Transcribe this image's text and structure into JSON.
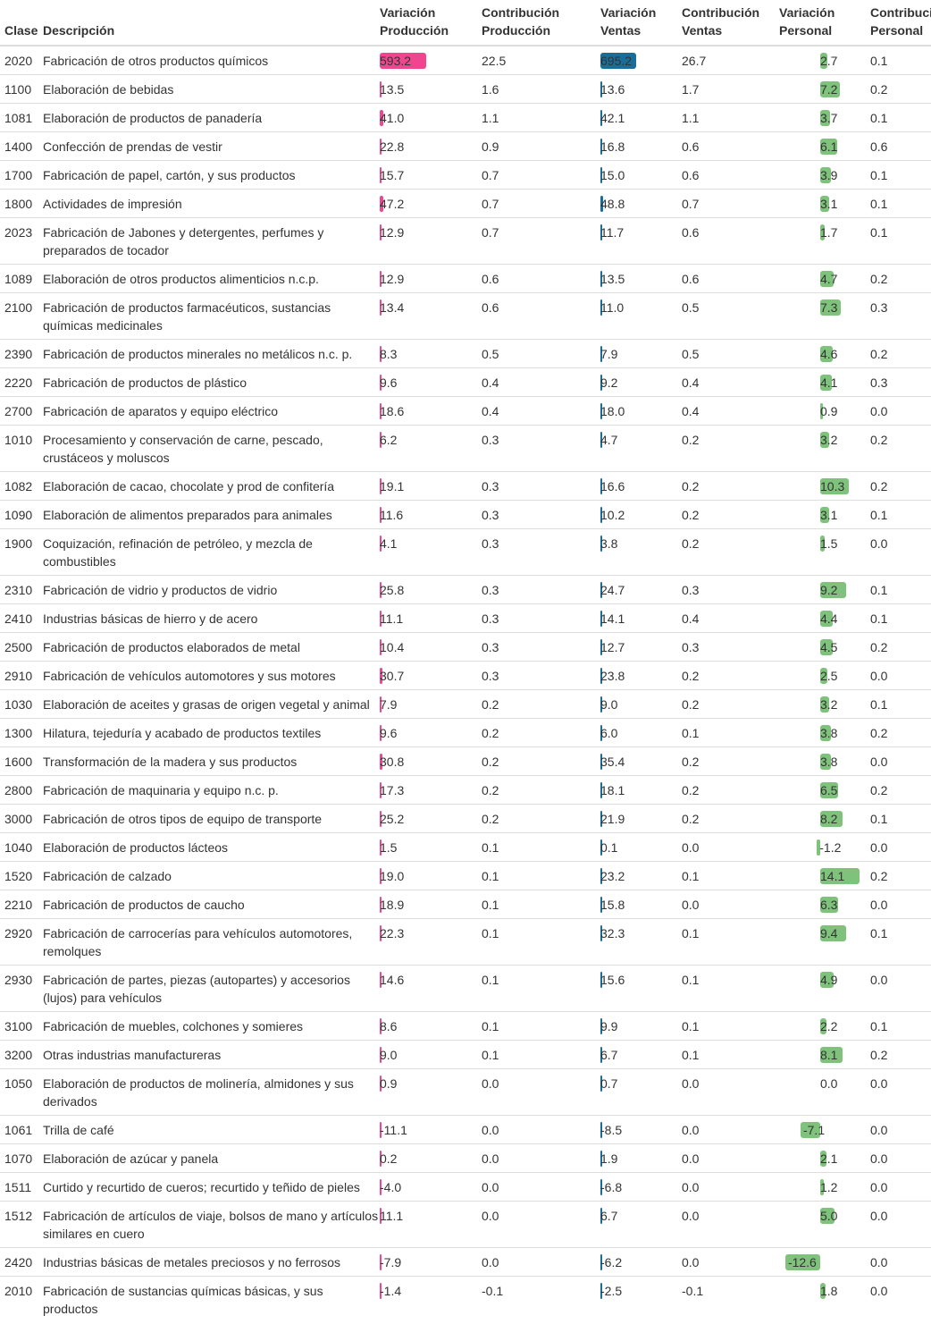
{
  "headers": {
    "clase": "Clase",
    "descripcion": "Descripción",
    "var_prod": [
      "Variación",
      "Producción"
    ],
    "con_prod": [
      "Contribución",
      "Producción"
    ],
    "var_ventas": [
      "Variación",
      "Ventas"
    ],
    "con_ventas": [
      "Contribución",
      "Ventas"
    ],
    "var_personal": [
      "Variación",
      "Personal"
    ],
    "con_personal": [
      "Contribución",
      "Personal"
    ]
  },
  "colors": {
    "produccion_bar": "#f0468f",
    "ventas_bar": "#1a6d99",
    "personal_bar": "#7ec27b",
    "row_border": "#dddddd"
  },
  "rows": [
    {
      "clase": "2020",
      "desc": "Fabricación de otros productos químicos",
      "vp": "593.2",
      "cp": "22.5",
      "vv": "695.2",
      "cv": "26.7",
      "vper": "2.7",
      "cper": "0.1"
    },
    {
      "clase": "1100",
      "desc": "Elaboración de bebidas",
      "vp": "13.5",
      "cp": "1.6",
      "vv": "13.6",
      "cv": "1.7",
      "vper": "7.2",
      "cper": "0.2"
    },
    {
      "clase": "1081",
      "desc": "Elaboración de productos de panadería",
      "vp": "41.0",
      "cp": "1.1",
      "vv": "42.1",
      "cv": "1.1",
      "vper": "3.7",
      "cper": "0.1"
    },
    {
      "clase": "1400",
      "desc": "Confección de prendas de vestir",
      "vp": "22.8",
      "cp": "0.9",
      "vv": "16.8",
      "cv": "0.6",
      "vper": "6.1",
      "cper": "0.6"
    },
    {
      "clase": "1700",
      "desc": "Fabricación de papel, cartón, y sus productos",
      "vp": "15.7",
      "cp": "0.7",
      "vv": "15.0",
      "cv": "0.6",
      "vper": "3.9",
      "cper": "0.1"
    },
    {
      "clase": "1800",
      "desc": "Actividades de impresión",
      "vp": "47.2",
      "cp": "0.7",
      "vv": "48.8",
      "cv": "0.7",
      "vper": "3.1",
      "cper": "0.1"
    },
    {
      "clase": "2023",
      "desc": "Fabricación de Jabones y detergentes, perfumes y preparados de tocador",
      "vp": "12.9",
      "cp": "0.7",
      "vv": "11.7",
      "cv": "0.6",
      "vper": "1.7",
      "cper": "0.1"
    },
    {
      "clase": "1089",
      "desc": "Elaboración de otros productos alimenticios n.c.p.",
      "vp": "12.9",
      "cp": "0.6",
      "vv": "13.5",
      "cv": "0.6",
      "vper": "4.7",
      "cper": "0.2"
    },
    {
      "clase": "2100",
      "desc": "Fabricación de productos farmacéuticos, sustancias químicas medicinales",
      "vp": "13.4",
      "cp": "0.6",
      "vv": "11.0",
      "cv": "0.5",
      "vper": "7.3",
      "cper": "0.3"
    },
    {
      "clase": "2390",
      "desc": "Fabricación de productos minerales no metálicos n.c. p.",
      "vp": "8.3",
      "cp": "0.5",
      "vv": "7.9",
      "cv": "0.5",
      "vper": "4.6",
      "cper": "0.2"
    },
    {
      "clase": "2220",
      "desc": "Fabricación de productos de plástico",
      "vp": "9.6",
      "cp": "0.4",
      "vv": "9.2",
      "cv": "0.4",
      "vper": "4.1",
      "cper": "0.3"
    },
    {
      "clase": "2700",
      "desc": "Fabricación de aparatos y equipo eléctrico",
      "vp": "18.6",
      "cp": "0.4",
      "vv": "18.0",
      "cv": "0.4",
      "vper": "0.9",
      "cper": "0.0"
    },
    {
      "clase": "1010",
      "desc": "Procesamiento y conservación de carne, pescado, crustáceos y moluscos",
      "vp": "6.2",
      "cp": "0.3",
      "vv": "4.7",
      "cv": "0.2",
      "vper": "3.2",
      "cper": "0.2"
    },
    {
      "clase": "1082",
      "desc": "Elaboración de cacao, chocolate y prod de confitería",
      "vp": "19.1",
      "cp": "0.3",
      "vv": "16.6",
      "cv": "0.2",
      "vper": "10.3",
      "cper": "0.2"
    },
    {
      "clase": "1090",
      "desc": "Elaboración de alimentos preparados para animales",
      "vp": "11.6",
      "cp": "0.3",
      "vv": "10.2",
      "cv": "0.2",
      "vper": "3.1",
      "cper": "0.1"
    },
    {
      "clase": "1900",
      "desc": "Coquización, refinación de petróleo, y mezcla de combustibles",
      "vp": "4.1",
      "cp": "0.3",
      "vv": "3.8",
      "cv": "0.2",
      "vper": "1.5",
      "cper": "0.0"
    },
    {
      "clase": "2310",
      "desc": "Fabricación de vidrio y productos de vidrio",
      "vp": "25.8",
      "cp": "0.3",
      "vv": "24.7",
      "cv": "0.3",
      "vper": "9.2",
      "cper": "0.1"
    },
    {
      "clase": "2410",
      "desc": "Industrias básicas de hierro y de acero",
      "vp": "11.1",
      "cp": "0.3",
      "vv": "14.1",
      "cv": "0.4",
      "vper": "4.4",
      "cper": "0.1"
    },
    {
      "clase": "2500",
      "desc": "Fabricación de productos elaborados de metal",
      "vp": "10.4",
      "cp": "0.3",
      "vv": "12.7",
      "cv": "0.3",
      "vper": "4.5",
      "cper": "0.2"
    },
    {
      "clase": "2910",
      "desc": "Fabricación de vehículos automotores y sus motores",
      "vp": "30.7",
      "cp": "0.3",
      "vv": "23.8",
      "cv": "0.2",
      "vper": "2.5",
      "cper": "0.0"
    },
    {
      "clase": "1030",
      "desc": "Elaboración de aceites y grasas de origen vegetal y animal",
      "vp": "7.9",
      "cp": "0.2",
      "vv": "9.0",
      "cv": "0.2",
      "vper": "3.2",
      "cper": "0.1"
    },
    {
      "clase": "1300",
      "desc": "Hilatura, tejeduría y acabado de productos textiles",
      "vp": "9.6",
      "cp": "0.2",
      "vv": "6.0",
      "cv": "0.1",
      "vper": "3.8",
      "cper": "0.2"
    },
    {
      "clase": "1600",
      "desc": "Transformación de la madera y sus productos",
      "vp": "30.8",
      "cp": "0.2",
      "vv": "35.4",
      "cv": "0.2",
      "vper": "3.8",
      "cper": "0.0"
    },
    {
      "clase": "2800",
      "desc": "Fabricación de maquinaria y equipo n.c. p.",
      "vp": "17.3",
      "cp": "0.2",
      "vv": "18.1",
      "cv": "0.2",
      "vper": "6.5",
      "cper": "0.2"
    },
    {
      "clase": "3000",
      "desc": "Fabricación de otros tipos de equipo de transporte",
      "vp": "25.2",
      "cp": "0.2",
      "vv": "21.9",
      "cv": "0.2",
      "vper": "8.2",
      "cper": "0.1"
    },
    {
      "clase": "1040",
      "desc": "Elaboración de productos lácteos",
      "vp": "1.5",
      "cp": "0.1",
      "vv": "0.1",
      "cv": "0.0",
      "vper": "-1.2",
      "cper": "0.0"
    },
    {
      "clase": "1520",
      "desc": "Fabricación de calzado",
      "vp": "19.0",
      "cp": "0.1",
      "vv": "23.2",
      "cv": "0.1",
      "vper": "14.1",
      "cper": "0.2"
    },
    {
      "clase": "2210",
      "desc": "Fabricación de productos de caucho",
      "vp": "18.9",
      "cp": "0.1",
      "vv": "15.8",
      "cv": "0.0",
      "vper": "6.3",
      "cper": "0.0"
    },
    {
      "clase": "2920",
      "desc": "Fabricación de carrocerías para vehículos automotores, remolques",
      "vp": "22.3",
      "cp": "0.1",
      "vv": "32.3",
      "cv": "0.1",
      "vper": "9.4",
      "cper": "0.1"
    },
    {
      "clase": "2930",
      "desc": "Fabricación de partes, piezas (autopartes) y accesorios (lujos) para vehículos",
      "vp": "14.6",
      "cp": "0.1",
      "vv": "15.6",
      "cv": "0.1",
      "vper": "4.9",
      "cper": "0.0"
    },
    {
      "clase": "3100",
      "desc": "Fabricación de muebles, colchones y somieres",
      "vp": "8.6",
      "cp": "0.1",
      "vv": "9.9",
      "cv": "0.1",
      "vper": "2.2",
      "cper": "0.1"
    },
    {
      "clase": "3200",
      "desc": "Otras industrias manufactureras",
      "vp": "9.0",
      "cp": "0.1",
      "vv": "6.7",
      "cv": "0.1",
      "vper": "8.1",
      "cper": "0.2"
    },
    {
      "clase": "1050",
      "desc": "Elaboración de productos de molinería, almidones y sus derivados",
      "vp": "0.9",
      "cp": "0.0",
      "vv": "0.7",
      "cv": "0.0",
      "vper": "0.0",
      "cper": "0.0"
    },
    {
      "clase": "1061",
      "desc": "Trilla de café",
      "vp": "-11.1",
      "cp": "0.0",
      "vv": "-8.5",
      "cv": "0.0",
      "vper": "-7.1",
      "cper": "0.0"
    },
    {
      "clase": "1070",
      "desc": "Elaboración de azúcar y panela",
      "vp": "0.2",
      "cp": "0.0",
      "vv": "1.9",
      "cv": "0.0",
      "vper": "2.1",
      "cper": "0.0"
    },
    {
      "clase": "1511",
      "desc": "Curtido y recurtido de cueros; recurtido y teñido de pieles",
      "vp": "-4.0",
      "cp": "0.0",
      "vv": "-6.8",
      "cv": "0.0",
      "vper": "1.2",
      "cper": "0.0"
    },
    {
      "clase": "1512",
      "desc": "Fabricación de artículos de viaje, bolsos de mano y artículos similares en cuero",
      "vp": "11.1",
      "cp": "0.0",
      "vv": "6.7",
      "cv": "0.0",
      "vper": "5.0",
      "cper": "0.0"
    },
    {
      "clase": "2420",
      "desc": "Industrias básicas de metales preciosos y no ferrosos",
      "vp": "-7.9",
      "cp": "0.0",
      "vv": "-6.2",
      "cv": "0.0",
      "vper": "-12.6",
      "cper": "0.0"
    },
    {
      "clase": "2010",
      "desc": "Fabricación de sustancias químicas básicas, y sus productos",
      "vp": "-1.4",
      "cp": "-0.1",
      "vv": "-2.5",
      "cv": "-0.1",
      "vper": "1.8",
      "cper": "0.0"
    }
  ]
}
